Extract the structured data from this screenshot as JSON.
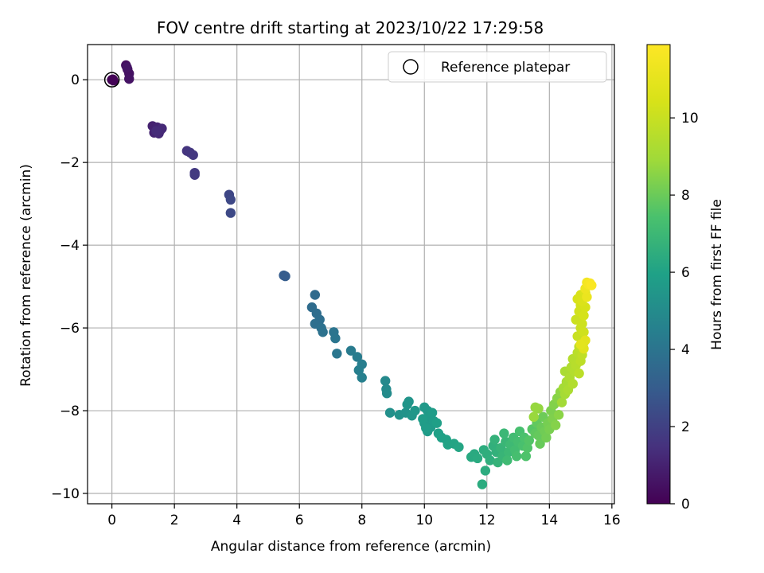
{
  "chart_data": {
    "type": "scatter",
    "title": "FOV centre drift starting at 2023/10/22 17:29:58",
    "xlabel": "Angular distance from reference (arcmin)",
    "ylabel": "Rotation from reference (arcmin)",
    "xlim": [
      -0.78,
      16.08
    ],
    "ylim": [
      -10.25,
      0.85
    ],
    "xticks": [
      0,
      2,
      4,
      6,
      8,
      10,
      12,
      14,
      16
    ],
    "yticks": [
      0,
      -2,
      -4,
      -6,
      -8,
      -10
    ],
    "xtick_labels": [
      "0",
      "2",
      "4",
      "6",
      "8",
      "10",
      "12",
      "14",
      "16"
    ],
    "ytick_labels": [
      "0",
      "−2",
      "−4",
      "−6",
      "−8",
      "−10"
    ],
    "grid": true,
    "legend": {
      "location": "top-right",
      "entries": [
        "Reference platepar"
      ]
    },
    "reference_point": {
      "x": 0,
      "y": 0
    },
    "colorbar": {
      "label": "Hours from first FF file",
      "colormap": "viridis",
      "range": [
        0,
        11.9
      ],
      "ticks": [
        0,
        2,
        4,
        6,
        8,
        10
      ],
      "tick_labels": [
        "0",
        "2",
        "4",
        "6",
        "8",
        "10"
      ]
    },
    "points": [
      {
        "x": 0.0,
        "y": 0.0,
        "h": 0.0
      },
      {
        "x": 0.05,
        "y": -0.02,
        "h": 0.05
      },
      {
        "x": 0.03,
        "y": 0.01,
        "h": 0.1
      },
      {
        "x": 0.45,
        "y": 0.35,
        "h": 0.4
      },
      {
        "x": 0.5,
        "y": 0.25,
        "h": 0.45
      },
      {
        "x": 0.55,
        "y": 0.15,
        "h": 0.5
      },
      {
        "x": 0.55,
        "y": 0.02,
        "h": 0.55
      },
      {
        "x": 0.48,
        "y": 0.3,
        "h": 0.6
      },
      {
        "x": 1.3,
        "y": -1.12,
        "h": 1.0
      },
      {
        "x": 1.35,
        "y": -1.28,
        "h": 1.05
      },
      {
        "x": 1.45,
        "y": -1.15,
        "h": 1.1
      },
      {
        "x": 1.55,
        "y": -1.22,
        "h": 1.15
      },
      {
        "x": 1.5,
        "y": -1.3,
        "h": 1.2
      },
      {
        "x": 1.6,
        "y": -1.18,
        "h": 1.25
      },
      {
        "x": 1.42,
        "y": -1.24,
        "h": 1.3
      },
      {
        "x": 2.4,
        "y": -1.72,
        "h": 1.6
      },
      {
        "x": 2.5,
        "y": -1.76,
        "h": 1.65
      },
      {
        "x": 2.6,
        "y": -1.82,
        "h": 1.7
      },
      {
        "x": 2.65,
        "y": -2.25,
        "h": 1.75
      },
      {
        "x": 2.65,
        "y": -2.3,
        "h": 1.8
      },
      {
        "x": 3.75,
        "y": -2.78,
        "h": 2.2
      },
      {
        "x": 3.8,
        "y": -2.9,
        "h": 2.25
      },
      {
        "x": 3.8,
        "y": -3.22,
        "h": 2.3
      },
      {
        "x": 5.5,
        "y": -4.73,
        "h": 3.0
      },
      {
        "x": 5.55,
        "y": -4.75,
        "h": 3.02
      },
      {
        "x": 6.5,
        "y": -5.2,
        "h": 3.6
      },
      {
        "x": 6.4,
        "y": -5.5,
        "h": 3.65
      },
      {
        "x": 6.55,
        "y": -5.65,
        "h": 3.7
      },
      {
        "x": 6.65,
        "y": -5.8,
        "h": 3.75
      },
      {
        "x": 6.5,
        "y": -5.9,
        "h": 3.8
      },
      {
        "x": 6.7,
        "y": -6.0,
        "h": 3.85
      },
      {
        "x": 6.75,
        "y": -6.1,
        "h": 3.9
      },
      {
        "x": 7.1,
        "y": -6.1,
        "h": 4.0
      },
      {
        "x": 7.15,
        "y": -6.25,
        "h": 4.05
      },
      {
        "x": 7.2,
        "y": -6.62,
        "h": 4.1
      },
      {
        "x": 7.65,
        "y": -6.55,
        "h": 4.3
      },
      {
        "x": 7.85,
        "y": -6.7,
        "h": 4.35
      },
      {
        "x": 8.0,
        "y": -6.88,
        "h": 4.4
      },
      {
        "x": 7.9,
        "y": -7.02,
        "h": 4.45
      },
      {
        "x": 8.0,
        "y": -7.2,
        "h": 4.5
      },
      {
        "x": 8.75,
        "y": -7.28,
        "h": 4.9
      },
      {
        "x": 8.78,
        "y": -7.48,
        "h": 4.95
      },
      {
        "x": 8.8,
        "y": -7.58,
        "h": 5.0
      },
      {
        "x": 8.9,
        "y": -8.05,
        "h": 5.2
      },
      {
        "x": 9.2,
        "y": -8.1,
        "h": 5.3
      },
      {
        "x": 9.4,
        "y": -8.05,
        "h": 5.35
      },
      {
        "x": 9.5,
        "y": -7.78,
        "h": 5.4
      },
      {
        "x": 9.45,
        "y": -7.85,
        "h": 5.42
      },
      {
        "x": 9.6,
        "y": -8.12,
        "h": 5.45
      },
      {
        "x": 9.7,
        "y": -8.0,
        "h": 5.5
      },
      {
        "x": 10.0,
        "y": -7.92,
        "h": 5.6
      },
      {
        "x": 10.1,
        "y": -8.0,
        "h": 5.62
      },
      {
        "x": 10.15,
        "y": -8.15,
        "h": 5.64
      },
      {
        "x": 10.0,
        "y": -8.3,
        "h": 5.66
      },
      {
        "x": 10.2,
        "y": -8.4,
        "h": 5.68
      },
      {
        "x": 10.1,
        "y": -8.5,
        "h": 5.7
      },
      {
        "x": 10.3,
        "y": -8.25,
        "h": 5.72
      },
      {
        "x": 10.25,
        "y": -8.05,
        "h": 5.74
      },
      {
        "x": 9.95,
        "y": -8.2,
        "h": 5.76
      },
      {
        "x": 10.05,
        "y": -8.42,
        "h": 5.78
      },
      {
        "x": 10.4,
        "y": -8.3,
        "h": 5.85
      },
      {
        "x": 10.45,
        "y": -8.55,
        "h": 5.9
      },
      {
        "x": 10.55,
        "y": -8.65,
        "h": 5.95
      },
      {
        "x": 10.7,
        "y": -8.7,
        "h": 6.0
      },
      {
        "x": 10.75,
        "y": -8.82,
        "h": 6.05
      },
      {
        "x": 10.95,
        "y": -8.8,
        "h": 6.1
      },
      {
        "x": 11.1,
        "y": -8.88,
        "h": 6.15
      },
      {
        "x": 11.5,
        "y": -9.12,
        "h": 6.3
      },
      {
        "x": 11.6,
        "y": -9.05,
        "h": 6.33
      },
      {
        "x": 11.7,
        "y": -9.15,
        "h": 6.36
      },
      {
        "x": 11.85,
        "y": -9.78,
        "h": 6.4
      },
      {
        "x": 11.95,
        "y": -9.45,
        "h": 6.42
      },
      {
        "x": 11.9,
        "y": -8.95,
        "h": 6.44
      },
      {
        "x": 12.0,
        "y": -9.05,
        "h": 6.5
      },
      {
        "x": 12.1,
        "y": -9.2,
        "h": 6.55
      },
      {
        "x": 12.2,
        "y": -8.85,
        "h": 6.6
      },
      {
        "x": 12.3,
        "y": -9.0,
        "h": 6.65
      },
      {
        "x": 12.25,
        "y": -8.7,
        "h": 6.7
      },
      {
        "x": 12.35,
        "y": -9.25,
        "h": 6.75
      },
      {
        "x": 12.45,
        "y": -8.9,
        "h": 6.8
      },
      {
        "x": 12.5,
        "y": -9.1,
        "h": 6.85
      },
      {
        "x": 12.6,
        "y": -8.75,
        "h": 6.9
      },
      {
        "x": 12.55,
        "y": -8.55,
        "h": 6.95
      },
      {
        "x": 12.7,
        "y": -9.0,
        "h": 7.0
      },
      {
        "x": 12.75,
        "y": -8.82,
        "h": 7.05
      },
      {
        "x": 12.65,
        "y": -9.2,
        "h": 7.1
      },
      {
        "x": 12.85,
        "y": -8.65,
        "h": 7.15
      },
      {
        "x": 12.9,
        "y": -8.95,
        "h": 7.2
      },
      {
        "x": 13.0,
        "y": -8.75,
        "h": 7.25
      },
      {
        "x": 12.95,
        "y": -9.1,
        "h": 7.3
      },
      {
        "x": 13.05,
        "y": -8.5,
        "h": 7.35
      },
      {
        "x": 13.15,
        "y": -8.85,
        "h": 7.4
      },
      {
        "x": 13.2,
        "y": -8.65,
        "h": 7.45
      },
      {
        "x": 13.25,
        "y": -9.1,
        "h": 7.5
      },
      {
        "x": 13.3,
        "y": -8.9,
        "h": 7.55
      },
      {
        "x": 13.35,
        "y": -8.72,
        "h": 7.6
      },
      {
        "x": 13.45,
        "y": -8.45,
        "h": 7.65
      },
      {
        "x": 13.55,
        "y": -8.55,
        "h": 7.8
      },
      {
        "x": 13.6,
        "y": -8.3,
        "h": 7.85
      },
      {
        "x": 13.65,
        "y": -8.6,
        "h": 7.9
      },
      {
        "x": 13.7,
        "y": -8.8,
        "h": 7.95
      },
      {
        "x": 13.75,
        "y": -8.4,
        "h": 8.0
      },
      {
        "x": 13.8,
        "y": -8.15,
        "h": 8.05
      },
      {
        "x": 13.85,
        "y": -8.5,
        "h": 8.1
      },
      {
        "x": 13.9,
        "y": -8.65,
        "h": 8.15
      },
      {
        "x": 13.95,
        "y": -8.3,
        "h": 8.2
      },
      {
        "x": 14.0,
        "y": -8.45,
        "h": 8.25
      },
      {
        "x": 14.05,
        "y": -8.0,
        "h": 8.3
      },
      {
        "x": 14.1,
        "y": -8.2,
        "h": 8.35
      },
      {
        "x": 14.15,
        "y": -7.85,
        "h": 8.4
      },
      {
        "x": 14.2,
        "y": -8.35,
        "h": 8.45
      },
      {
        "x": 14.25,
        "y": -7.7,
        "h": 8.5
      },
      {
        "x": 14.3,
        "y": -8.1,
        "h": 8.55
      },
      {
        "x": 14.35,
        "y": -7.55,
        "h": 8.6
      },
      {
        "x": 13.65,
        "y": -7.95,
        "h": 8.7
      },
      {
        "x": 13.55,
        "y": -7.92,
        "h": 8.75
      },
      {
        "x": 13.5,
        "y": -8.15,
        "h": 8.8
      },
      {
        "x": 14.4,
        "y": -7.8,
        "h": 9.0
      },
      {
        "x": 14.45,
        "y": -7.45,
        "h": 9.05
      },
      {
        "x": 14.5,
        "y": -7.6,
        "h": 9.1
      },
      {
        "x": 14.55,
        "y": -7.3,
        "h": 9.15
      },
      {
        "x": 14.5,
        "y": -7.05,
        "h": 9.2
      },
      {
        "x": 14.6,
        "y": -7.5,
        "h": 9.25
      },
      {
        "x": 14.65,
        "y": -7.2,
        "h": 9.3
      },
      {
        "x": 14.7,
        "y": -6.95,
        "h": 9.35
      },
      {
        "x": 14.75,
        "y": -7.35,
        "h": 9.4
      },
      {
        "x": 14.8,
        "y": -7.05,
        "h": 9.45
      },
      {
        "x": 14.75,
        "y": -6.75,
        "h": 9.5
      },
      {
        "x": 14.85,
        "y": -6.9,
        "h": 9.55
      },
      {
        "x": 14.9,
        "y": -6.6,
        "h": 9.6
      },
      {
        "x": 14.95,
        "y": -7.1,
        "h": 9.65
      },
      {
        "x": 15.0,
        "y": -6.8,
        "h": 9.7
      },
      {
        "x": 14.95,
        "y": -6.45,
        "h": 9.75
      },
      {
        "x": 15.05,
        "y": -6.65,
        "h": 9.8
      },
      {
        "x": 15.1,
        "y": -6.35,
        "h": 9.85
      },
      {
        "x": 14.9,
        "y": -6.2,
        "h": 10.0
      },
      {
        "x": 15.0,
        "y": -6.0,
        "h": 10.05
      },
      {
        "x": 14.85,
        "y": -5.8,
        "h": 10.1
      },
      {
        "x": 15.05,
        "y": -5.9,
        "h": 10.15
      },
      {
        "x": 15.1,
        "y": -6.1,
        "h": 10.2
      },
      {
        "x": 14.95,
        "y": -5.6,
        "h": 10.25
      },
      {
        "x": 15.0,
        "y": -5.45,
        "h": 10.3
      },
      {
        "x": 15.1,
        "y": -5.7,
        "h": 10.35
      },
      {
        "x": 15.15,
        "y": -5.5,
        "h": 10.4
      },
      {
        "x": 14.9,
        "y": -5.3,
        "h": 10.45
      },
      {
        "x": 15.0,
        "y": -5.2,
        "h": 10.5
      },
      {
        "x": 15.05,
        "y": -5.35,
        "h": 10.55
      },
      {
        "x": 15.15,
        "y": -5.15,
        "h": 10.6
      },
      {
        "x": 15.1,
        "y": -6.5,
        "h": 10.8
      },
      {
        "x": 15.15,
        "y": -6.3,
        "h": 10.85
      },
      {
        "x": 15.0,
        "y": -6.4,
        "h": 10.9
      },
      {
        "x": 15.2,
        "y": -5.25,
        "h": 11.2
      },
      {
        "x": 15.15,
        "y": -5.05,
        "h": 11.3
      },
      {
        "x": 15.2,
        "y": -4.9,
        "h": 11.5
      },
      {
        "x": 15.25,
        "y": -4.95,
        "h": 11.6
      },
      {
        "x": 15.3,
        "y": -4.92,
        "h": 11.7
      },
      {
        "x": 15.35,
        "y": -4.97,
        "h": 11.8
      }
    ]
  }
}
